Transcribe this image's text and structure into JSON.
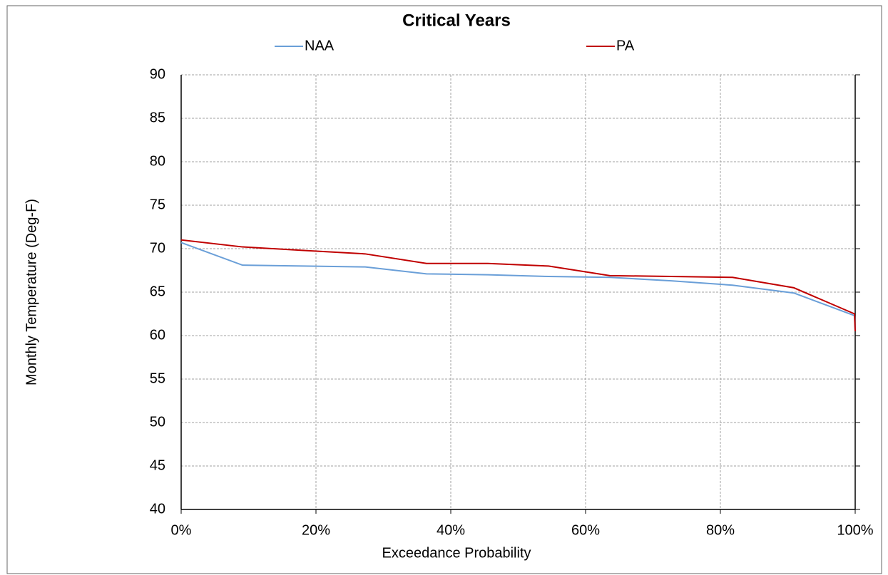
{
  "chart_data": {
    "type": "line",
    "title": "Critical Years",
    "xlabel": "Exceedance Probability",
    "ylabel": "Monthly Temperature (Deg-F)",
    "x": [
      0,
      9.1,
      18.2,
      27.3,
      36.4,
      45.5,
      54.5,
      63.6,
      72.7,
      81.8,
      90.9,
      99.9,
      100
    ],
    "series": [
      {
        "name": "NAA",
        "color": "#6a9fd8",
        "values": [
          70.7,
          68.1,
          68.0,
          67.9,
          67.1,
          67.0,
          66.8,
          66.7,
          66.3,
          65.8,
          64.9,
          62.3,
          60.5
        ]
      },
      {
        "name": "PA",
        "color": "#c00000",
        "values": [
          71.0,
          70.2,
          69.8,
          69.4,
          68.3,
          68.3,
          68.0,
          66.9,
          66.8,
          66.7,
          65.5,
          62.5,
          60.5
        ]
      }
    ],
    "xlim": [
      0,
      100
    ],
    "xticks": [
      {
        "value": 0,
        "label": "0%"
      },
      {
        "value": 20,
        "label": "20%"
      },
      {
        "value": 40,
        "label": "40%"
      },
      {
        "value": 60,
        "label": "60%"
      },
      {
        "value": 80,
        "label": "80%"
      },
      {
        "value": 100,
        "label": "100%"
      }
    ],
    "ylim": [
      40,
      90
    ],
    "yticks": [
      40,
      45,
      50,
      55,
      60,
      65,
      70,
      75,
      80,
      85,
      90
    ],
    "grid": true,
    "legend": "top"
  }
}
